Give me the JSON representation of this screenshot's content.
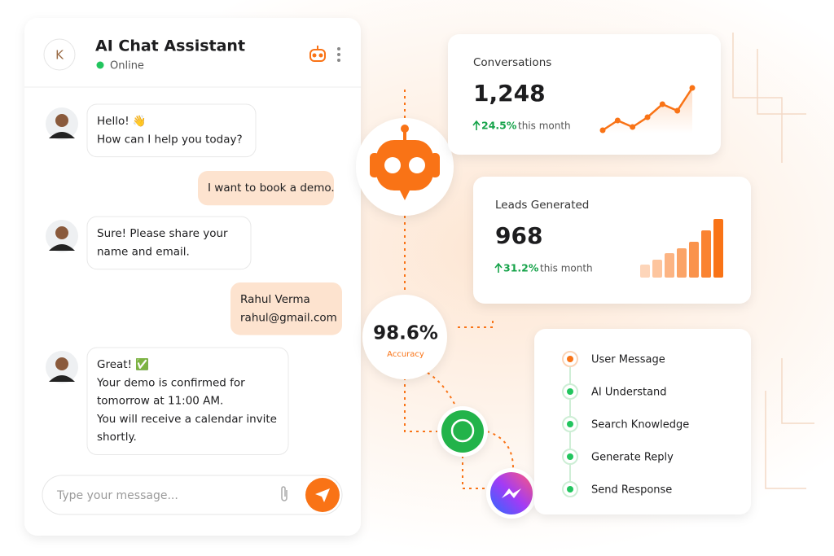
{
  "chat": {
    "avatar_initial": "K",
    "title": "AI Chat Assistant",
    "status": "Online",
    "messages": [
      {
        "from": "bot",
        "lines": [
          "Hello! 👋",
          "How can I help you today?"
        ]
      },
      {
        "from": "user",
        "lines": [
          "I want to book a demo."
        ]
      },
      {
        "from": "bot",
        "lines": [
          "Sure! Please share your",
          "name and email."
        ]
      },
      {
        "from": "user",
        "lines": [
          "Rahul Verma",
          "rahul@gmail.com"
        ]
      },
      {
        "from": "bot",
        "lines": [
          "Great! ✅",
          "Your demo is confirmed for",
          "tomorrow at 11:00 AM.",
          "You will receive a calendar invite",
          "shortly."
        ]
      }
    ],
    "input_placeholder": "Type your message..."
  },
  "stats": [
    {
      "title": "Conversations",
      "value": "1,248",
      "change": "24.5%",
      "period": "this month",
      "trend": [
        2,
        5,
        3,
        6,
        10,
        8,
        15
      ]
    },
    {
      "title": "Leads Generated",
      "value": "968",
      "change": "31.2%",
      "period": "this month",
      "trend": [
        16,
        22,
        30,
        36,
        44,
        58,
        72
      ]
    }
  ],
  "accuracy": {
    "value": "98.6%",
    "label": "Accuracy"
  },
  "pipeline": {
    "steps": [
      "User Message",
      "AI Understand",
      "Search Knowledge",
      "Generate Reply",
      "Send Response"
    ]
  }
}
